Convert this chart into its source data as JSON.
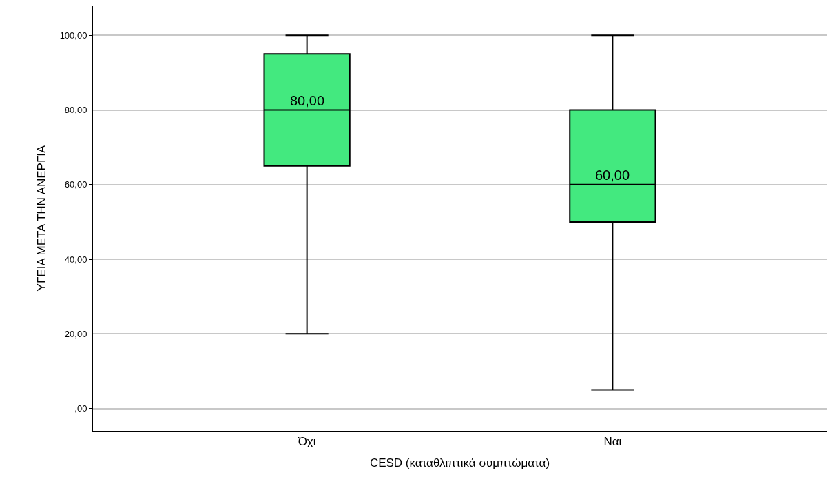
{
  "chart_data": {
    "type": "box",
    "xlabel": "CESD (καταθλιπτικά συμπτώματα)",
    "ylabel": "ΥΓΕΙΑ ΜΕΤΑ ΤΗΝ ΑΝΕΡΓΙΑ",
    "categories": [
      "Όχι",
      "Ναι"
    ],
    "boxes": [
      {
        "low": 20,
        "q1": 65,
        "median": 80,
        "q3": 95,
        "high": 100
      },
      {
        "low": 5,
        "q1": 50,
        "median": 60,
        "q3": 80,
        "high": 100
      }
    ],
    "color": "#43e97f",
    "annotations": [
      {
        "text": "80,00",
        "x": "Όχι",
        "y": 80
      },
      {
        "text": "60,00",
        "x": "Ναι",
        "y": 60
      }
    ],
    "ylim": [
      -6,
      108
    ],
    "yticks": [
      {
        "value": 0,
        "label": ",00"
      },
      {
        "value": 20,
        "label": "20,00"
      },
      {
        "value": 40,
        "label": "40,00"
      },
      {
        "value": 60,
        "label": "60,00"
      },
      {
        "value": 80,
        "label": "80,00"
      },
      {
        "value": 100,
        "label": "100,00"
      }
    ],
    "grid": "y"
  }
}
